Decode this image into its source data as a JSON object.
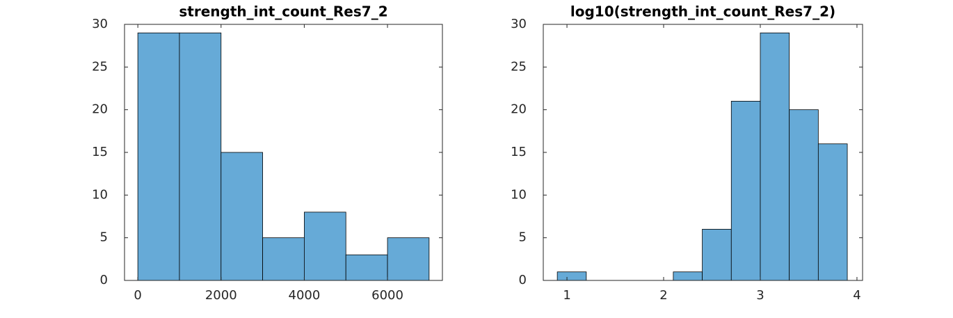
{
  "chart_data": [
    {
      "type": "histogram",
      "title": "strength_int_count_Res7_2",
      "bins": [
        0,
        1000,
        2000,
        3000,
        4000,
        5000,
        6000,
        7000
      ],
      "counts": [
        29,
        29,
        15,
        5,
        8,
        3,
        5
      ],
      "color": "#66aad7",
      "xlim": [
        -320,
        7320
      ],
      "ylim": [
        0,
        30
      ],
      "xticks": [
        0,
        2000,
        4000,
        6000
      ],
      "yticks": [
        0,
        5,
        10,
        15,
        20,
        25,
        30
      ]
    },
    {
      "type": "histogram",
      "title": "log10(strength_int_count_Res7_2)",
      "bins": [
        0.9,
        1.2,
        1.5,
        1.8,
        2.1,
        2.4,
        2.7,
        3.0,
        3.3,
        3.6,
        3.9
      ],
      "counts": [
        1,
        0,
        0,
        0,
        1,
        6,
        21,
        29,
        20,
        16
      ],
      "color": "#66aad7",
      "xlim": [
        0.755,
        4.058
      ],
      "ylim": [
        0,
        30
      ],
      "xticks": [
        1,
        2,
        3,
        4
      ],
      "yticks": [
        0,
        5,
        10,
        15,
        20,
        25,
        30
      ]
    }
  ]
}
